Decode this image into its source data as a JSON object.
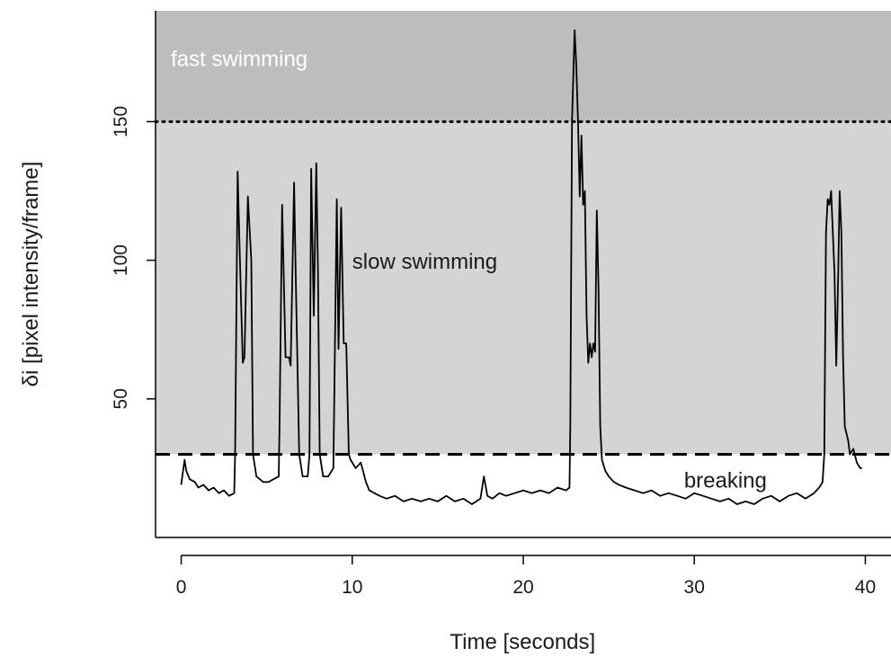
{
  "chart_data": {
    "type": "line",
    "title": "",
    "xlabel": "Time [seconds]",
    "ylabel": "δi [pixel intensity/frame]",
    "xlim": [
      -1.5,
      41.5
    ],
    "ylim": [
      0,
      190
    ],
    "xticks": [
      0,
      10,
      20,
      30,
      40
    ],
    "yticks": [
      50,
      100,
      150
    ],
    "grid": false,
    "legend": "none",
    "thresholds": [
      {
        "value": 150,
        "style": "dotted"
      },
      {
        "value": 30,
        "style": "dashed"
      }
    ],
    "regions": [
      {
        "label": "fast swimming",
        "from": 150,
        "to": 190,
        "color": "#bdbdbd",
        "label_color": "#ffffff",
        "label_x": -0.6,
        "label_y": 170
      },
      {
        "label": "slow swimming",
        "from": 30,
        "to": 150,
        "color": "#d4d4d4",
        "label_color": "#1a1a1a",
        "label_x": 10.0,
        "label_y": 97
      },
      {
        "label": "breaking",
        "from": 0,
        "to": 30,
        "color": "#ffffff",
        "label_color": "#1a1a1a",
        "label_x": 29.4,
        "label_y": 18
      }
    ],
    "series": [
      {
        "color": "#000000",
        "x": [
          0.0,
          0.2,
          0.3,
          0.5,
          0.8,
          1.0,
          1.3,
          1.6,
          1.9,
          2.2,
          2.5,
          2.8,
          3.1,
          3.15,
          3.3,
          3.4,
          3.6,
          3.7,
          3.9,
          4.1,
          4.2,
          4.4,
          4.6,
          4.8,
          5.1,
          5.4,
          5.7,
          5.75,
          5.9,
          6.1,
          6.3,
          6.4,
          6.6,
          6.7,
          6.9,
          7.1,
          7.4,
          7.5,
          7.6,
          7.75,
          7.9,
          8.0,
          8.1,
          8.3,
          8.6,
          8.9,
          9.1,
          9.2,
          9.35,
          9.5,
          9.65,
          9.8,
          9.9,
          10.2,
          10.5,
          10.8,
          11.0,
          11.3,
          11.6,
          12.0,
          12.5,
          13.0,
          13.5,
          14.0,
          14.5,
          15.0,
          15.5,
          16.0,
          16.5,
          17.0,
          17.5,
          17.7,
          17.9,
          18.2,
          18.6,
          19.0,
          19.5,
          20.0,
          20.5,
          21.0,
          21.5,
          22.0,
          22.5,
          22.7,
          22.75,
          22.85,
          23.0,
          23.1,
          23.2,
          23.3,
          23.4,
          23.5,
          23.6,
          23.7,
          23.8,
          23.9,
          24.0,
          24.1,
          24.2,
          24.3,
          24.4,
          24.5,
          24.6,
          24.8,
          25.0,
          25.3,
          25.6,
          26.0,
          26.5,
          27.0,
          27.5,
          28.0,
          28.5,
          29.0,
          29.5,
          30.0,
          30.5,
          31.0,
          31.5,
          32.0,
          32.5,
          33.0,
          33.5,
          34.0,
          34.5,
          35.0,
          35.5,
          36.0,
          36.5,
          37.0,
          37.3,
          37.5,
          37.6,
          37.7,
          37.8,
          37.9,
          38.0,
          38.2,
          38.3,
          38.4,
          38.5,
          38.6,
          38.7,
          38.8,
          39.0,
          39.1,
          39.3,
          39.5,
          39.7,
          39.8
        ],
        "y": [
          19,
          28,
          24,
          21,
          20,
          18,
          19,
          17,
          18,
          16,
          17,
          15,
          16,
          30,
          132,
          108,
          63,
          65,
          123,
          100,
          30,
          22,
          21,
          20,
          20,
          21,
          22,
          40,
          120,
          65,
          65,
          62,
          128,
          93,
          30,
          22,
          22,
          30,
          133,
          80,
          135,
          95,
          30,
          22,
          22,
          25,
          122,
          68,
          119,
          70,
          70,
          30,
          28,
          25,
          27,
          20,
          17,
          16,
          15,
          14,
          15,
          13,
          14,
          13,
          14,
          13,
          15,
          13,
          14,
          12,
          14,
          22,
          15,
          14,
          16,
          15,
          16,
          17,
          16,
          17,
          16,
          18,
          17,
          18,
          40,
          150,
          183,
          170,
          150,
          123,
          145,
          120,
          125,
          80,
          63,
          70,
          65,
          70,
          67,
          118,
          90,
          40,
          28,
          24,
          22,
          20,
          19,
          18,
          17,
          16,
          17,
          15,
          16,
          15,
          14,
          16,
          15,
          14,
          13,
          14,
          12,
          13,
          12,
          14,
          15,
          13,
          15,
          16,
          14,
          16,
          18,
          20,
          30,
          110,
          122,
          120,
          125,
          95,
          62,
          90,
          125,
          110,
          65,
          40,
          35,
          30,
          32,
          27,
          25,
          25
        ]
      }
    ]
  }
}
